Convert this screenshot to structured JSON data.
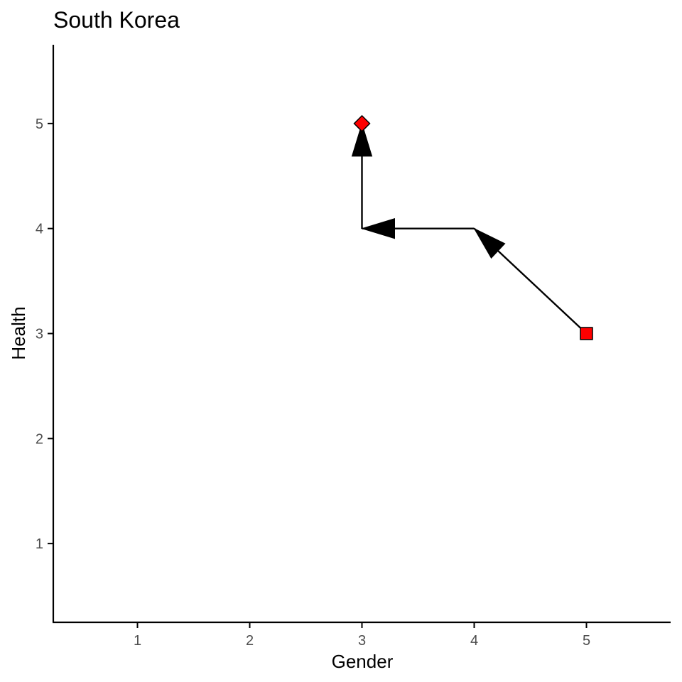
{
  "chart_data": {
    "type": "line",
    "title": "South Korea",
    "xlabel": "Gender",
    "ylabel": "Health",
    "xlim": [
      0.25,
      5.75
    ],
    "ylim": [
      0.25,
      5.75
    ],
    "xticks": [
      1,
      2,
      3,
      4,
      5
    ],
    "yticks": [
      1,
      2,
      3,
      4,
      5
    ],
    "grid": false,
    "legend": "none",
    "path": [
      {
        "x": 5,
        "y": 3
      },
      {
        "x": 4,
        "y": 4
      },
      {
        "x": 3,
        "y": 4
      },
      {
        "x": 3,
        "y": 5
      }
    ],
    "arrows": "directional arrows along the path from start to end",
    "start_point": {
      "x": 5,
      "y": 3,
      "shape": "square",
      "color": "#ff0000"
    },
    "end_point": {
      "x": 3,
      "y": 5,
      "shape": "diamond",
      "color": "#ff0000"
    },
    "line_color": "#000000"
  }
}
